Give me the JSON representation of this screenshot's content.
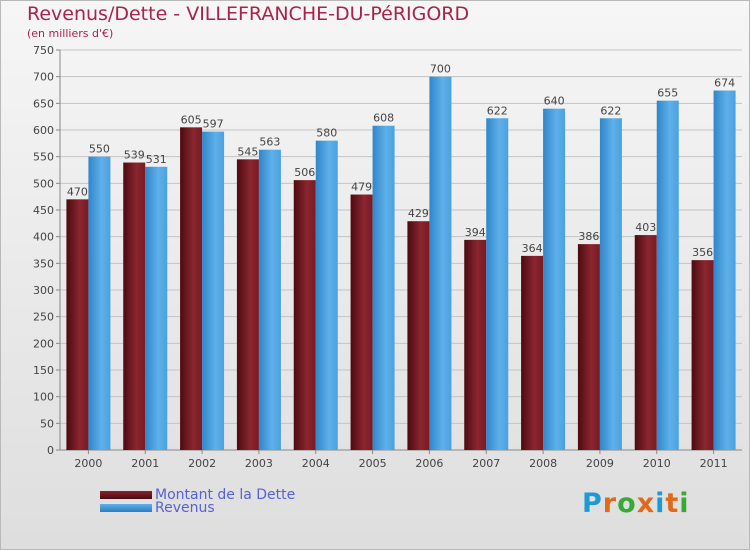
{
  "title": "Revenus/Dette - VILLEFRANCHE-DU-PéRIGORD",
  "subtitle": "(en milliers d'€)",
  "logo": {
    "letters": [
      "P",
      "r",
      "o",
      "x",
      "i",
      "t",
      "i"
    ]
  },
  "colors": {
    "dette": "#7a1a22",
    "revenus": "#3b95d9",
    "title": "#a8234b",
    "legend_text": "#5561d6",
    "logo": [
      "#1b9ad5",
      "#e06a1c",
      "#39a935",
      "#e06a1c",
      "#1b9ad5",
      "#e06a1c",
      "#39a935"
    ]
  },
  "chart_data": {
    "type": "bar",
    "title": "Revenus/Dette - VILLEFRANCHE-DU-PéRIGORD",
    "ylabel": "(en milliers d'€)",
    "categories": [
      "2000",
      "2001",
      "2002",
      "2003",
      "2004",
      "2005",
      "2006",
      "2007",
      "2008",
      "2009",
      "2010",
      "2011"
    ],
    "series": [
      {
        "name": "Montant de la Dette",
        "values": [
          470,
          539,
          605,
          545,
          506,
          479,
          429,
          394,
          364,
          386,
          403,
          356
        ]
      },
      {
        "name": "Revenus",
        "values": [
          550,
          531,
          597,
          563,
          580,
          608,
          700,
          622,
          640,
          622,
          655,
          674
        ]
      }
    ],
    "ylim": [
      0,
      750
    ],
    "yticks": [
      0,
      50,
      100,
      150,
      200,
      250,
      300,
      350,
      400,
      450,
      500,
      550,
      600,
      650,
      700,
      750
    ],
    "grid": true,
    "legend": "bottom-left"
  }
}
